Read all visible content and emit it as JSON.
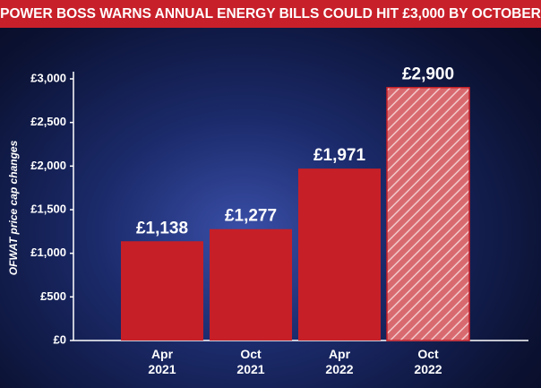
{
  "chart_data": {
    "type": "bar",
    "title": "POWER BOSS WARNS ANNUAL ENERGY BILLS COULD HIT £3,000 BY OCTOBER",
    "y_label": "OFWAT price cap changes",
    "categories": [
      "Apr 2021",
      "Oct 2021",
      "Apr 2022",
      "Oct 2022"
    ],
    "values": [
      1138,
      1277,
      1971,
      2900
    ],
    "value_labels": [
      "£1,138",
      "£1,277",
      "£1,971",
      "£2,900"
    ],
    "hatched": [
      false,
      false,
      false,
      true
    ],
    "color": "#c61f28",
    "ylim": [
      0,
      3000
    ],
    "yticks": [
      {
        "value": 0,
        "label": "£0"
      },
      {
        "value": 500,
        "label": "£500"
      },
      {
        "value": 1000,
        "label": "£1,000"
      },
      {
        "value": 1500,
        "label": "£1,500"
      },
      {
        "value": 2000,
        "label": "£2,000"
      },
      {
        "value": 2500,
        "label": "£2,500"
      },
      {
        "value": 3000,
        "label": "£3,000"
      }
    ]
  }
}
